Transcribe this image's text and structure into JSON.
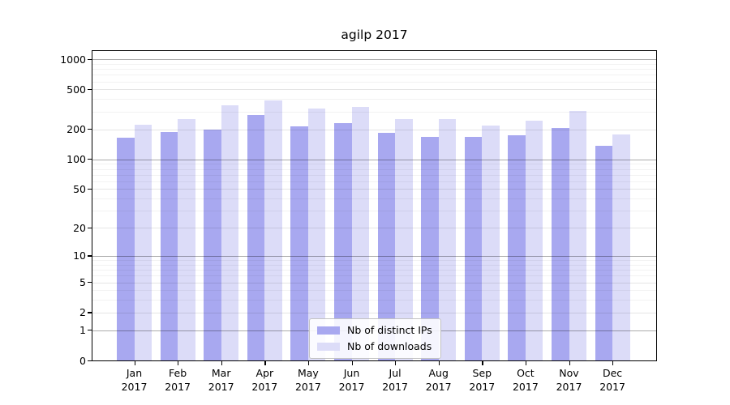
{
  "chart_data": {
    "type": "bar",
    "title": "agilp 2017",
    "categories": [
      "Jan 2017",
      "Feb 2017",
      "Mar 2017",
      "Apr 2017",
      "May 2017",
      "Jun 2017",
      "Jul 2017",
      "Aug 2017",
      "Sep 2017",
      "Oct 2017",
      "Nov 2017",
      "Dec 2017"
    ],
    "series": [
      {
        "name": "Nb of distinct IPs",
        "color": "#a8a8f0",
        "values": [
          164,
          188,
          200,
          278,
          214,
          230,
          184,
          167,
          167,
          175,
          207,
          137
        ]
      },
      {
        "name": "Nb of downloads",
        "color": "#dcdcf8",
        "values": [
          221,
          251,
          346,
          386,
          322,
          336,
          254,
          255,
          220,
          243,
          305,
          176
        ]
      }
    ],
    "xlabel": "",
    "ylabel": "",
    "y_scale": "log1p",
    "y_ticks": [
      0,
      1,
      2,
      5,
      10,
      20,
      50,
      100,
      200,
      500,
      1000
    ],
    "ylim": [
      0,
      1210
    ],
    "grid": "horizontal major and minor gridlines, drawn over bars",
    "legend_position": "inside plot, lower center",
    "frame_color": "#000000"
  }
}
